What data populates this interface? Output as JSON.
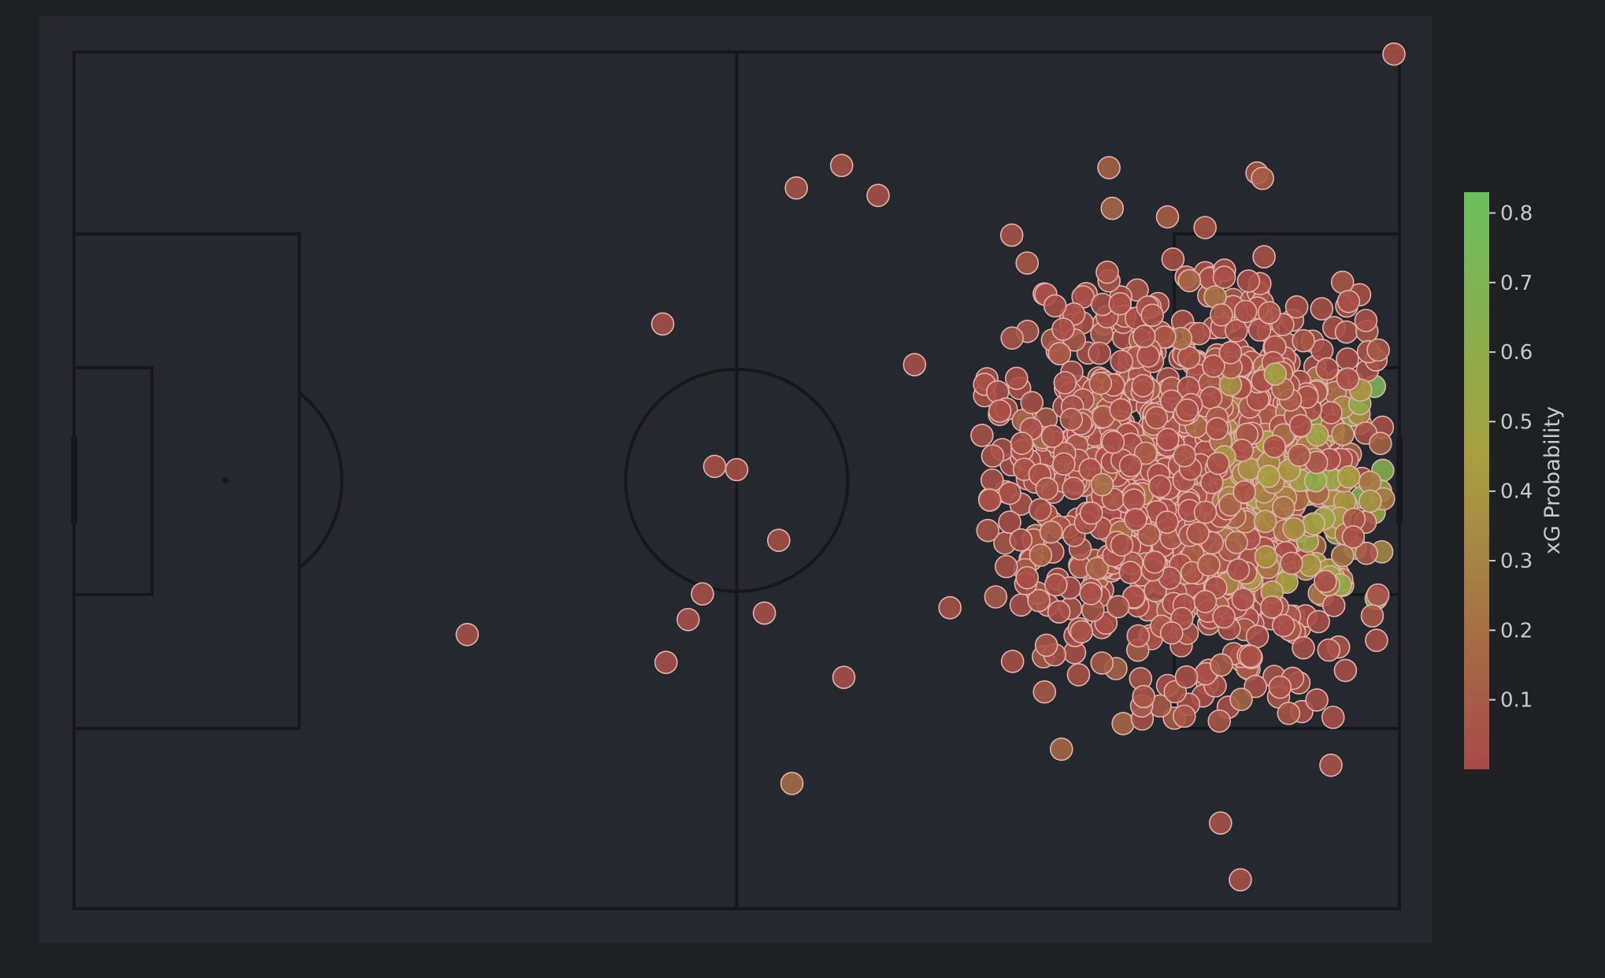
{
  "chart_data": {
    "type": "scatter",
    "title": "",
    "xlabel": "",
    "ylabel": "",
    "xlim": [
      0,
      120
    ],
    "ylim": [
      0,
      80
    ],
    "grid": false,
    "legend": "none",
    "colorbar": {
      "label": "xG Probability",
      "range": [
        0.0,
        0.83
      ],
      "ticks": [
        0.1,
        0.2,
        0.3,
        0.4,
        0.5,
        0.6,
        0.7,
        0.8
      ],
      "tick_labels": [
        "0.1",
        "0.2",
        "0.3",
        "0.4",
        "0.5",
        "0.6",
        "0.7",
        "0.8"
      ],
      "colors": [
        "#a84a48",
        "#a6a040",
        "#6bbf5e"
      ]
    },
    "colors": {
      "background": "#1f2023",
      "pitch": "#262830",
      "pitch_lines": "#17181b",
      "marker_edge": "#e0b3ad"
    },
    "outliers": [
      {
        "x": 119.5,
        "y": 0.2,
        "xg": 0.03
      },
      {
        "x": 69.5,
        "y": 10.6,
        "xg": 0.04
      },
      {
        "x": 65.4,
        "y": 12.7,
        "xg": 0.04
      },
      {
        "x": 72.8,
        "y": 13.4,
        "xg": 0.03
      },
      {
        "x": 107.1,
        "y": 11.3,
        "xg": 0.04
      },
      {
        "x": 107.6,
        "y": 11.8,
        "xg": 0.1
      },
      {
        "x": 94.0,
        "y": 14.6,
        "xg": 0.15
      },
      {
        "x": 99.0,
        "y": 15.4,
        "xg": 0.1
      },
      {
        "x": 102.4,
        "y": 16.4,
        "xg": 0.06
      },
      {
        "x": 93.7,
        "y": 10.8,
        "xg": 0.12
      },
      {
        "x": 84.9,
        "y": 17.1,
        "xg": 0.04
      },
      {
        "x": 53.3,
        "y": 25.4,
        "xg": 0.03
      },
      {
        "x": 76.1,
        "y": 29.2,
        "xg": 0.03
      },
      {
        "x": 58.0,
        "y": 38.7,
        "xg": 0.03
      },
      {
        "x": 60.0,
        "y": 39.0,
        "xg": 0.03
      },
      {
        "x": 63.8,
        "y": 45.6,
        "xg": 0.03
      },
      {
        "x": 56.9,
        "y": 50.6,
        "xg": 0.03
      },
      {
        "x": 55.6,
        "y": 53.0,
        "xg": 0.03
      },
      {
        "x": 62.5,
        "y": 52.4,
        "xg": 0.03
      },
      {
        "x": 35.6,
        "y": 54.4,
        "xg": 0.03
      },
      {
        "x": 53.6,
        "y": 57.0,
        "xg": 0.03
      },
      {
        "x": 69.7,
        "y": 58.4,
        "xg": 0.03
      },
      {
        "x": 65.0,
        "y": 68.3,
        "xg": 0.18
      },
      {
        "x": 89.4,
        "y": 65.1,
        "xg": 0.16
      },
      {
        "x": 113.8,
        "y": 66.6,
        "xg": 0.05
      },
      {
        "x": 103.8,
        "y": 72.0,
        "xg": 0.04
      },
      {
        "x": 105.6,
        "y": 77.3,
        "xg": 0.04
      },
      {
        "x": 79.3,
        "y": 51.9,
        "xg": 0.04
      },
      {
        "x": 82.2,
        "y": 35.8,
        "xg": 0.04
      }
    ],
    "cluster": {
      "count": 1200,
      "x_range": [
        82,
        119
      ],
      "y_range": [
        19,
        63
      ],
      "x_mean": 102,
      "y_mean": 40,
      "xg_range": [
        0.02,
        0.83
      ],
      "high_xg_zone": {
        "x_range": [
          104,
          119
        ],
        "y_range": [
          30,
          52
        ]
      }
    }
  }
}
